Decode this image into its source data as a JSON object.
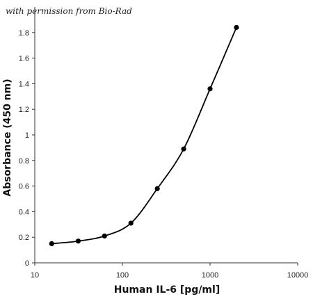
{
  "credit": "with permission from Bio-Rad",
  "chart_data": {
    "type": "line",
    "title": "",
    "xlabel": "Human IL-6 [pg/ml]",
    "ylabel": "Absorbance (450 nm)",
    "x_scale": "log",
    "xlim": [
      10,
      10000
    ],
    "ylim": [
      0,
      2
    ],
    "x_ticks": [
      10,
      100,
      1000,
      10000
    ],
    "x_tick_labels": [
      "10",
      "100",
      "1000",
      "10000"
    ],
    "y_ticks": [
      0,
      0.2,
      0.4,
      0.6,
      0.8,
      1,
      1.2,
      1.4,
      1.6,
      1.8
    ],
    "y_tick_labels": [
      "0",
      "0.2",
      "0.4",
      "0.6",
      "0.8",
      "1",
      "1.2",
      "1.4",
      "1.6",
      "1.8"
    ],
    "grid": false,
    "legend": "none",
    "series": [
      {
        "x": [
          15.6,
          31.3,
          62.5,
          125,
          250,
          500,
          1000,
          2000
        ],
        "y": [
          0.15,
          0.17,
          0.21,
          0.31,
          0.58,
          0.89,
          1.36,
          1.84
        ],
        "color": "#000000",
        "marker": "circle",
        "smooth": true
      }
    ]
  }
}
